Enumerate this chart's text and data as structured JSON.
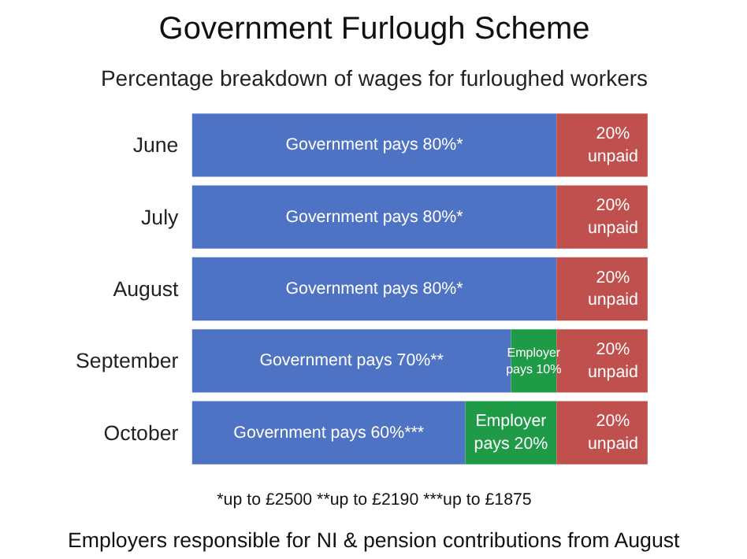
{
  "chart_data": {
    "type": "bar",
    "orientation": "horizontal",
    "stacked": true,
    "title": "Government Furlough Scheme",
    "subtitle": "Percentage breakdown of wages for furloughed workers",
    "categories": [
      "June",
      "July",
      "August",
      "September",
      "October"
    ],
    "series": [
      {
        "color": "#4f73c4",
        "values": [
          80,
          80,
          80,
          70,
          60
        ],
        "value_labels": [
          "Government pays 80%*",
          "Government pays 80%*",
          "Government pays 80%*",
          "Government pays 70%**",
          "Government pays 60%***"
        ]
      },
      {
        "color": "#1f9a47",
        "values": [
          0,
          0,
          0,
          10,
          20
        ],
        "value_labels": [
          null,
          null,
          null,
          "Employer\npays 10%",
          "Employer\npays 20%"
        ]
      },
      {
        "color": "#c0504d",
        "values": [
          20,
          20,
          20,
          20,
          20
        ],
        "value_labels": [
          "20%\nunpaid",
          "20%\nunpaid",
          "20%\nunpaid",
          "20%\nunpaid",
          "20%\nunpaid"
        ]
      }
    ],
    "annotations": [
      "*up to £2500 **up to £2190 ***up to £1875",
      "Employers responsible for NI & pension contributions from August"
    ],
    "grid": false
  }
}
